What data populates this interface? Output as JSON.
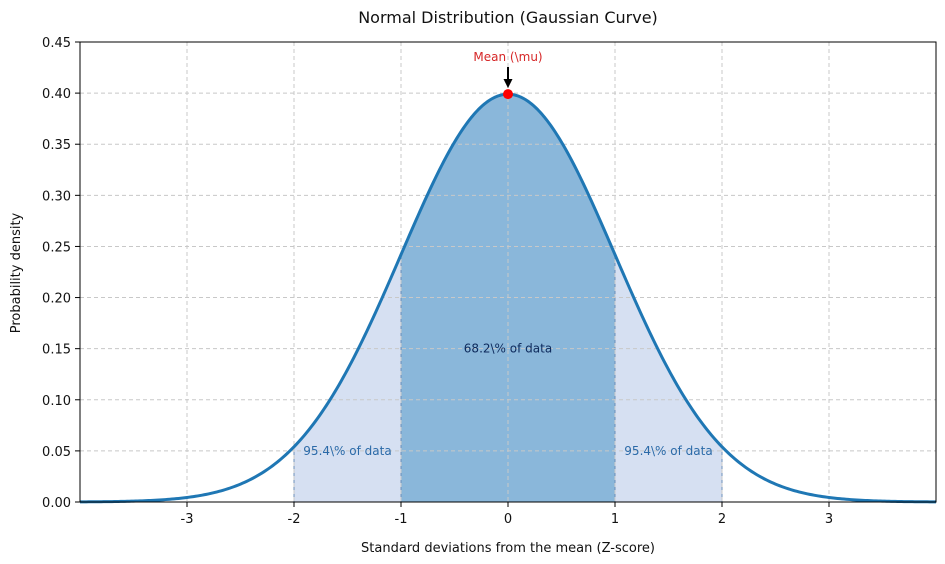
{
  "chart_data": {
    "type": "area",
    "title": "Normal Distribution (Gaussian Curve)",
    "xlabel": "Standard deviations from the mean (Z-score)",
    "ylabel": "Probability density",
    "xlim": [
      -4,
      4
    ],
    "ylim": [
      0,
      0.45
    ],
    "xticks": [
      -3,
      -2,
      -1,
      0,
      1,
      2,
      3
    ],
    "xtick_labels": [
      "-3",
      "-2",
      "-1",
      "0",
      "1",
      "2",
      "3"
    ],
    "yticks": [
      0.0,
      0.05,
      0.1,
      0.15,
      0.2,
      0.25,
      0.3,
      0.35,
      0.4,
      0.45
    ],
    "ytick_labels": [
      "0.00",
      "0.05",
      "0.10",
      "0.15",
      "0.20",
      "0.25",
      "0.30",
      "0.35",
      "0.40",
      "0.45"
    ],
    "grid": true,
    "series": [
      {
        "function": "standard normal pdf",
        "mean": 0,
        "std": 1,
        "color": "#1f77b4"
      }
    ],
    "shaded_regions": [
      {
        "range": [
          -2,
          -1
        ],
        "color": "#d6e0f2"
      },
      {
        "range": [
          -1,
          1
        ],
        "color": "#8ab7da"
      },
      {
        "range": [
          1,
          2
        ],
        "color": "#d6e0f2"
      }
    ],
    "annotations": [
      {
        "text": "68.2\\% of data",
        "x": 0,
        "y": 0.15,
        "color": "#0d2a5c"
      },
      {
        "text": "95.4\\% of data",
        "x": -1.5,
        "y": 0.05,
        "color": "#2b6aa8"
      },
      {
        "text": "95.4\\% of data",
        "x": 1.5,
        "y": 0.05,
        "color": "#2b6aa8"
      }
    ],
    "peak": {
      "label": "Mean (\\mu)",
      "x": 0,
      "y": 0.399,
      "marker_color": "#ff0000",
      "label_color": "#d62728"
    }
  }
}
